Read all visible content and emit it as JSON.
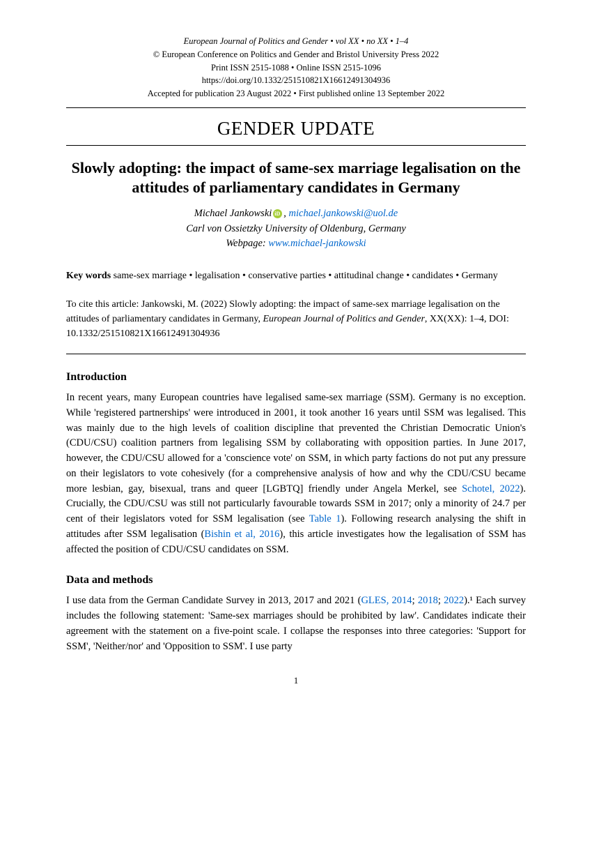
{
  "header": {
    "line1": "European Journal of Politics and Gender • vol XX • no XX • 1–4",
    "line2": "© European Conference on Politics and Gender and Bristol University Press 2022",
    "line3": "Print ISSN 2515-1088 • Online ISSN 2515-1096",
    "line4": "https://doi.org/10.1332/251510821X16612491304936",
    "line5": "Accepted for publication 23 August 2022 • First published online 13 September 2022"
  },
  "section_label": "GENDER UPDATE",
  "title": "Slowly adopting: the impact of same-sex marriage legalisation on the attitudes of parliamentary candidates in Germany",
  "author": {
    "name": "Michael Jankowski",
    "email": "michael.jankowski@uol.de",
    "affiliation": "Carl von Ossietzky University of Oldenburg, Germany",
    "webpage_label": "Webpage: ",
    "webpage": "www.michael-jankowski"
  },
  "keywords": {
    "label": "Key words",
    "text": " same-sex marriage • legalisation • conservative parties • attitudinal change • candidates • Germany"
  },
  "citation": {
    "prefix": "To cite this article: Jankowski, M. (2022) Slowly adopting: the impact of same-sex marriage legalisation on the attitudes of parliamentary candidates in Germany, ",
    "journal": "European Journal of Politics and Gender",
    "suffix": ", XX(XX): 1–4, DOI: 10.1332/251510821X16612491304936"
  },
  "sections": {
    "intro_heading": "Introduction",
    "intro_body_pre": "In recent years, many European countries have legalised same-sex marriage (SSM). Germany is no exception. While 'registered partnerships' were introduced in 2001, it took another 16 years until SSM was legalised. This was mainly due to the high levels of coalition discipline that prevented the Christian Democratic Union's (CDU/CSU) coalition partners from legalising SSM by collaborating with opposition parties. In June 2017, however, the CDU/CSU allowed for a 'conscience vote' on SSM, in which party factions do not put any pressure on their legislators to vote cohesively (for a comprehensive analysis of how and why the CDU/CSU became more lesbian, gay, bisexual, trans and queer [LGBTQ] friendly under Angela Merkel, see ",
    "intro_link1": "Schotel, 2022",
    "intro_body_mid1": "). Crucially, the CDU/CSU was still not particularly favourable towards SSM in 2017; only a minority of 24.7 per cent of their legislators voted for SSM legalisation (see ",
    "intro_link2": "Table 1",
    "intro_body_mid2": "). Following research analysing the shift in attitudes after SSM legalisation (",
    "intro_link3": "Bishin et al, 2016",
    "intro_body_post": "), this article investigates how the legalisation of SSM has affected the position of CDU/CSU candidates on SSM.",
    "data_heading": "Data and methods",
    "data_body_pre": "I use data from the German Candidate Survey in 2013, 2017 and 2021 (",
    "data_link1": "GLES, 2014",
    "data_sep1": "; ",
    "data_link2": "2018",
    "data_sep2": "; ",
    "data_link3": "2022",
    "data_body_post": ").¹ Each survey includes the following statement: 'Same-sex marriages should be prohibited by law'. Candidates indicate their agreement with the statement on a five-point scale. I collapse the responses into three categories: 'Support for SSM', 'Neither/nor' and 'Opposition to SSM'. I use party"
  },
  "page_number": "1",
  "colors": {
    "link": "#0066cc",
    "orcid": "#a6ce39",
    "text": "#000000",
    "background": "#ffffff"
  }
}
